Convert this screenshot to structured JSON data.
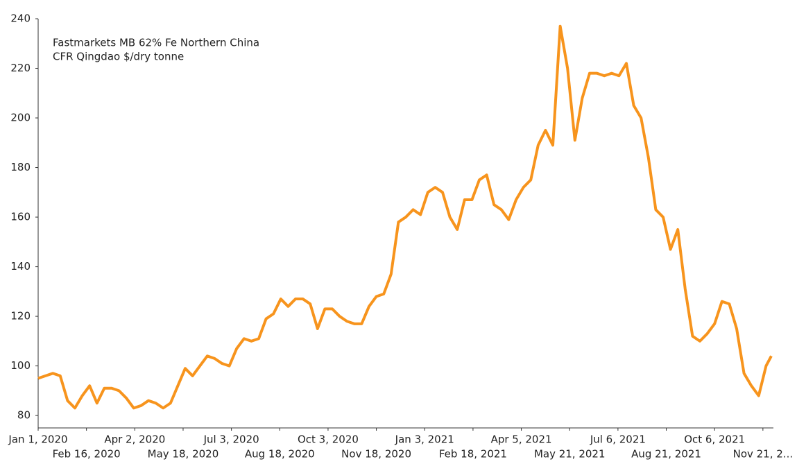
{
  "chart_data": {
    "type": "line",
    "title": [
      "Fastmarkets MB 62% Fe Northern China",
      "CFR Qingdao $/dry tonne"
    ],
    "color": "#f7941d",
    "xlim": [
      "2020-01-01",
      "2021-12-01"
    ],
    "ylim": [
      75,
      240
    ],
    "yticks": [
      80,
      100,
      120,
      140,
      160,
      180,
      200,
      220,
      240
    ],
    "xticks": [
      {
        "value": "2020-01-01",
        "label": "Jan 1, 2020"
      },
      {
        "value": "2020-02-16",
        "label": "Feb 16, 2020"
      },
      {
        "value": "2020-04-02",
        "label": "Apr 2, 2020"
      },
      {
        "value": "2020-05-18",
        "label": "May 18, 2020"
      },
      {
        "value": "2020-07-03",
        "label": "Jul 3, 2020"
      },
      {
        "value": "2020-08-18",
        "label": "Aug 18, 2020"
      },
      {
        "value": "2020-10-03",
        "label": "Oct 3, 2020"
      },
      {
        "value": "2020-11-18",
        "label": "Nov 18, 2020"
      },
      {
        "value": "2021-01-03",
        "label": "Jan 3, 2021"
      },
      {
        "value": "2021-02-18",
        "label": "Feb 18, 2021"
      },
      {
        "value": "2021-04-05",
        "label": "Apr 5, 2021"
      },
      {
        "value": "2021-05-21",
        "label": "May 21, 2021"
      },
      {
        "value": "2021-07-06",
        "label": "Jul 6, 2021"
      },
      {
        "value": "2021-08-21",
        "label": "Aug 21, 2021"
      },
      {
        "value": "2021-10-06",
        "label": "Oct 6, 2021"
      },
      {
        "value": "2021-11-21",
        "label": "Nov 21, 2..."
      }
    ],
    "x": [
      "2020-01-01",
      "2020-01-08",
      "2020-01-15",
      "2020-01-22",
      "2020-01-29",
      "2020-02-05",
      "2020-02-12",
      "2020-02-19",
      "2020-02-26",
      "2020-03-04",
      "2020-03-11",
      "2020-03-18",
      "2020-03-25",
      "2020-04-01",
      "2020-04-08",
      "2020-04-15",
      "2020-04-22",
      "2020-04-29",
      "2020-05-06",
      "2020-05-13",
      "2020-05-20",
      "2020-05-27",
      "2020-06-03",
      "2020-06-10",
      "2020-06-17",
      "2020-06-24",
      "2020-07-01",
      "2020-07-08",
      "2020-07-15",
      "2020-07-22",
      "2020-07-29",
      "2020-08-05",
      "2020-08-12",
      "2020-08-19",
      "2020-08-26",
      "2020-09-02",
      "2020-09-09",
      "2020-09-16",
      "2020-09-23",
      "2020-09-30",
      "2020-10-07",
      "2020-10-14",
      "2020-10-21",
      "2020-10-28",
      "2020-11-04",
      "2020-11-11",
      "2020-11-18",
      "2020-11-25",
      "2020-12-02",
      "2020-12-09",
      "2020-12-16",
      "2020-12-23",
      "2020-12-30",
      "2021-01-06",
      "2021-01-13",
      "2021-01-20",
      "2021-01-27",
      "2021-02-03",
      "2021-02-10",
      "2021-02-17",
      "2021-02-24",
      "2021-03-03",
      "2021-03-10",
      "2021-03-17",
      "2021-03-24",
      "2021-03-31",
      "2021-04-07",
      "2021-04-14",
      "2021-04-21",
      "2021-04-28",
      "2021-05-05",
      "2021-05-12",
      "2021-05-19",
      "2021-05-26",
      "2021-06-02",
      "2021-06-09",
      "2021-06-16",
      "2021-06-23",
      "2021-06-30",
      "2021-07-07",
      "2021-07-14",
      "2021-07-21",
      "2021-07-28",
      "2021-08-04",
      "2021-08-11",
      "2021-08-18",
      "2021-08-25",
      "2021-09-01",
      "2021-09-08",
      "2021-09-15",
      "2021-09-22",
      "2021-09-29",
      "2021-10-06",
      "2021-10-13",
      "2021-10-20",
      "2021-10-27",
      "2021-11-03",
      "2021-11-10",
      "2021-11-17",
      "2021-11-24",
      "2021-11-29"
    ],
    "values": [
      95,
      96,
      97,
      96,
      86,
      83,
      88,
      92,
      85,
      91,
      91,
      90,
      87,
      83,
      84,
      86,
      85,
      83,
      85,
      92,
      99,
      96,
      100,
      104,
      103,
      101,
      100,
      107,
      111,
      110,
      111,
      119,
      121,
      127,
      124,
      127,
      127,
      125,
      115,
      123,
      123,
      120,
      118,
      117,
      117,
      124,
      128,
      129,
      137,
      158,
      160,
      163,
      161,
      170,
      172,
      170,
      160,
      155,
      167,
      167,
      175,
      177,
      165,
      163,
      159,
      167,
      172,
      175,
      189,
      195,
      189,
      237,
      220,
      191,
      208,
      218,
      218,
      217,
      218,
      217,
      222,
      205,
      200,
      184,
      163,
      160,
      147,
      155,
      131,
      112,
      110,
      113,
      117,
      126,
      125,
      115,
      97,
      92,
      88,
      100,
      104
    ]
  }
}
